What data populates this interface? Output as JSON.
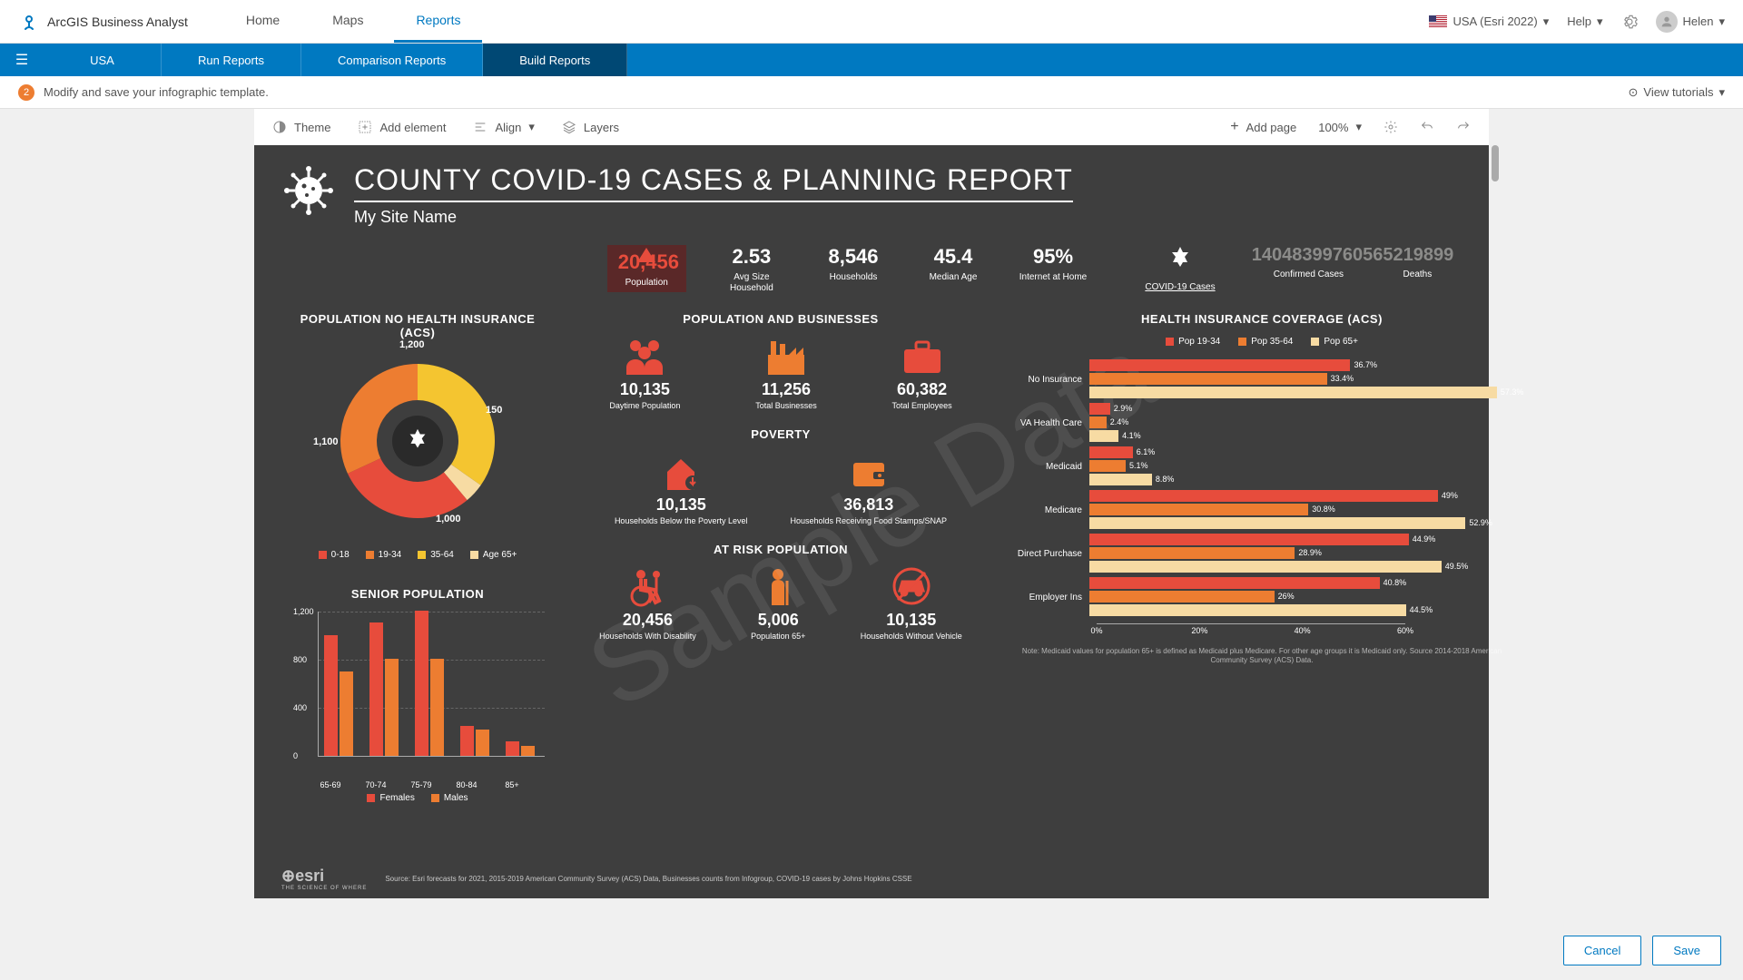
{
  "header": {
    "app_title": "ArcGIS Business Analyst",
    "nav": [
      "Home",
      "Maps",
      "Reports"
    ],
    "active_nav": 2,
    "locale_label": "USA (Esri 2022)",
    "help_label": "Help",
    "user_name": "Helen"
  },
  "subnav": {
    "country": "USA",
    "tabs": [
      "Run Reports",
      "Comparison Reports",
      "Build Reports"
    ],
    "active_tab": 2
  },
  "step": {
    "num": "2",
    "text": "Modify and save your infographic template.",
    "tutorials": "View tutorials"
  },
  "toolbar": {
    "theme": "Theme",
    "add_element": "Add element",
    "align": "Align",
    "layers": "Layers",
    "add_page": "Add page",
    "zoom": "100%"
  },
  "infographic": {
    "title": "COUNTY COVID-19 CASES & PLANNING REPORT",
    "subtitle": "My Site Name",
    "watermark": "Sample Data",
    "kpis": [
      {
        "val": "20,456",
        "lbl": "Population",
        "highlight": true
      },
      {
        "val": "2.53",
        "lbl": "Avg Size Household"
      },
      {
        "val": "8,546",
        "lbl": "Households"
      },
      {
        "val": "45.4",
        "lbl": "Median Age"
      },
      {
        "val": "95%",
        "lbl": "Internet at Home"
      }
    ],
    "covid_link": "COVID-19 Cases",
    "covid_confirmed": {
      "val": "14048399760565219899",
      "lbl1": "Confirmed Cases",
      "lbl2": "Deaths"
    },
    "donut": {
      "title": "POPULATION NO HEALTH INSURANCE (ACS)",
      "segments": [
        {
          "label": "1,200",
          "color": "#f4c530",
          "start": 0,
          "sweep": 125
        },
        {
          "label": "150",
          "color": "#f7dba3",
          "start": 125,
          "sweep": 15
        },
        {
          "label": "1,000",
          "color": "#e74c3c",
          "start": 140,
          "sweep": 105
        },
        {
          "label": "1,100",
          "color": "#ed7d31",
          "start": 245,
          "sweep": 115
        }
      ],
      "legend": [
        {
          "label": "0-18",
          "color": "#e74c3c"
        },
        {
          "label": "19-34",
          "color": "#ed7d31"
        },
        {
          "label": "35-64",
          "color": "#f4c530"
        },
        {
          "label": "Age 65+",
          "color": "#f7dba3"
        }
      ]
    },
    "senior_chart": {
      "title": "SENIOR POPULATION",
      "yticks": [
        0,
        400,
        800,
        1200
      ],
      "ymax": 1200,
      "categories": [
        "65-69",
        "70-74",
        "75-79",
        "80-84",
        "85+"
      ],
      "series": [
        {
          "name": "Females",
          "color": "#e74c3c",
          "values": [
            1000,
            1100,
            1200,
            250,
            120
          ]
        },
        {
          "name": "Males",
          "color": "#ed7d31",
          "values": [
            700,
            800,
            800,
            220,
            80
          ]
        }
      ]
    },
    "pop_biz": {
      "title": "POPULATION AND BUSINESSES",
      "items": [
        {
          "icon": "people",
          "color": "#e74c3c",
          "val": "10,135",
          "lbl": "Daytime Population"
        },
        {
          "icon": "factory",
          "color": "#ed7d31",
          "val": "11,256",
          "lbl": "Total Businesses"
        },
        {
          "icon": "briefcase",
          "color": "#e74c3c",
          "val": "60,382",
          "lbl": "Total Employees"
        }
      ]
    },
    "poverty": {
      "title": "POVERTY",
      "items": [
        {
          "icon": "house-down",
          "color": "#e74c3c",
          "val": "10,135",
          "lbl": "Households Below the Poverty Level"
        },
        {
          "icon": "wallet",
          "color": "#ed7d31",
          "val": "36,813",
          "lbl": "Households Receiving Food Stamps/SNAP"
        }
      ]
    },
    "atrisk": {
      "title": "AT RISK POPULATION",
      "items": [
        {
          "icon": "wheelchair",
          "color": "#e74c3c",
          "val": "20,456",
          "lbl": "Households With Disability"
        },
        {
          "icon": "person",
          "color": "#ed7d31",
          "val": "5,006",
          "lbl": "Population 65+"
        },
        {
          "icon": "nocar",
          "color": "#e74c3c",
          "val": "10,135",
          "lbl": "Households Without Vehicle"
        }
      ]
    },
    "hbar": {
      "title": "HEALTH INSURANCE COVERAGE (ACS)",
      "series": [
        {
          "name": "Pop 19-34",
          "color": "#e74c3c"
        },
        {
          "name": "Pop 35-64",
          "color": "#ed7d31"
        },
        {
          "name": "Pop 65+",
          "color": "#f7dba3"
        }
      ],
      "categories": [
        {
          "name": "No Insurance",
          "values": [
            36.7,
            33.4,
            57.3
          ]
        },
        {
          "name": "VA Health Care",
          "values": [
            2.9,
            2.4,
            4.1
          ]
        },
        {
          "name": "Medicaid",
          "values": [
            6.1,
            5.1,
            8.8
          ]
        },
        {
          "name": "Medicare",
          "values": [
            49.0,
            30.8,
            52.9
          ]
        },
        {
          "name": "Direct Purchase",
          "values": [
            44.9,
            28.9,
            49.5
          ]
        },
        {
          "name": "Employer Ins",
          "values": [
            40.8,
            26.0,
            44.5
          ]
        }
      ],
      "xticks": [
        "0%",
        "20%",
        "40%",
        "60%"
      ],
      "xmax": 60,
      "note": "Note: Medicaid values for population 65+ is defined as Medicaid plus Medicare. For other age groups it is Medicaid only. Source 2014-2018 American Community Survey (ACS) Data."
    },
    "source": "Source: Esri forecasts for 2021, 2015-2019 American Community Survey (ACS) Data, Businesses counts from Infogroup, COVID-19 cases by Johns Hopkins CSSE",
    "esri": {
      "main": "⊕esri",
      "tag": "THE SCIENCE OF WHERE"
    }
  },
  "buttons": {
    "cancel": "Cancel",
    "save": "Save"
  }
}
